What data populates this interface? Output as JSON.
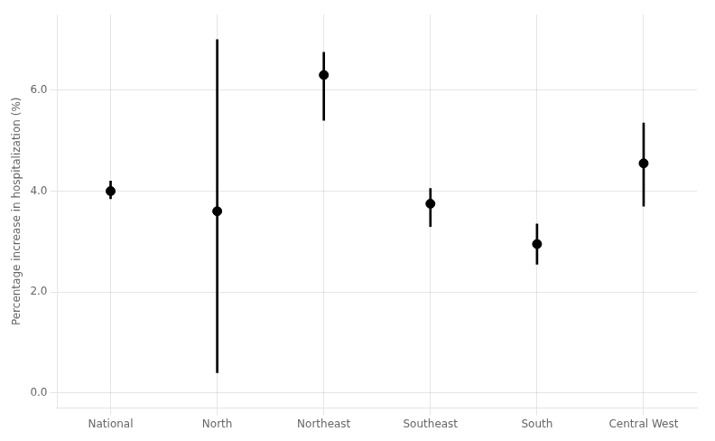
{
  "chart_data": {
    "type": "errorbar",
    "categories": [
      "National",
      "North",
      "Northeast",
      "Southeast",
      "South",
      "Central West"
    ],
    "values": [
      4.0,
      3.6,
      6.3,
      3.75,
      2.95,
      4.55
    ],
    "ci_lower": [
      3.85,
      0.4,
      5.4,
      3.3,
      2.55,
      3.7
    ],
    "ci_upper": [
      4.2,
      7.0,
      6.75,
      4.05,
      3.35,
      5.35
    ],
    "ylabel": "Percentage increase in hospitalization (%)",
    "ylim": [
      -0.3,
      7.5
    ],
    "yticks": [
      {
        "value": 0.0,
        "label": "0.0"
      },
      {
        "value": 2.0,
        "label": "2.0"
      },
      {
        "value": 4.0,
        "label": "4.0"
      },
      {
        "value": 6.0,
        "label": "6.0"
      }
    ],
    "color": "black",
    "marker": "circle",
    "grid": true
  }
}
